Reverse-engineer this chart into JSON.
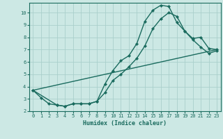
{
  "xlabel": "Humidex (Indice chaleur)",
  "ylabel": "",
  "xlim": [
    -0.5,
    23.5
  ],
  "ylim": [
    2,
    10.8
  ],
  "yticks": [
    2,
    3,
    4,
    5,
    6,
    7,
    8,
    9,
    10
  ],
  "xticks": [
    0,
    1,
    2,
    3,
    4,
    5,
    6,
    7,
    8,
    9,
    10,
    11,
    12,
    13,
    14,
    15,
    16,
    17,
    18,
    19,
    20,
    21,
    22,
    23
  ],
  "bg_color": "#cce8e4",
  "grid_color": "#aacfcb",
  "line_color": "#1a6b5e",
  "curve1_x": [
    0,
    1,
    2,
    3,
    4,
    5,
    6,
    7,
    8,
    9,
    10,
    11,
    12,
    13,
    14,
    15,
    16,
    17,
    18,
    19,
    20,
    21,
    22,
    23
  ],
  "curve1_y": [
    3.7,
    3.1,
    2.6,
    2.5,
    2.4,
    2.6,
    2.6,
    2.6,
    2.8,
    4.2,
    5.3,
    6.1,
    6.5,
    7.5,
    9.3,
    10.2,
    10.6,
    10.5,
    9.2,
    8.5,
    7.9,
    8.0,
    7.1,
    7.0
  ],
  "curve2_x": [
    0,
    3,
    4,
    5,
    6,
    7,
    8,
    9,
    10,
    11,
    12,
    13,
    14,
    15,
    16,
    17,
    18,
    19,
    20,
    21,
    22,
    23
  ],
  "curve2_y": [
    3.7,
    2.5,
    2.4,
    2.6,
    2.6,
    2.6,
    2.8,
    3.5,
    4.5,
    5.0,
    5.6,
    6.3,
    7.3,
    8.7,
    9.5,
    10.0,
    9.7,
    8.5,
    7.8,
    7.2,
    6.7,
    6.9
  ],
  "curve3_x": [
    0,
    23
  ],
  "curve3_y": [
    3.7,
    7.0
  ]
}
